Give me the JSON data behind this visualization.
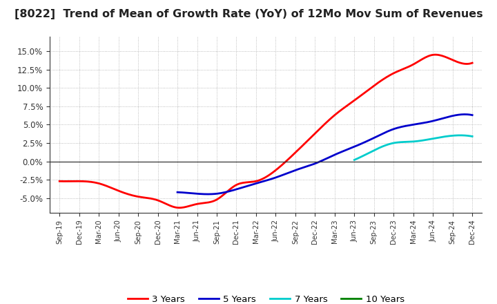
{
  "title": "[8022]  Trend of Mean of Growth Rate (YoY) of 12Mo Mov Sum of Revenues",
  "title_fontsize": 11.5,
  "ylim": [
    -0.07,
    0.17
  ],
  "yticks": [
    -0.05,
    -0.025,
    0.0,
    0.025,
    0.05,
    0.075,
    0.1,
    0.125,
    0.15
  ],
  "background_color": "#ffffff",
  "grid_color": "#aaaaaa",
  "series": {
    "3 Years": {
      "color": "#ff0000",
      "data": {
        "Sep-19": -0.027,
        "Dec-19": -0.027,
        "Mar-20": -0.03,
        "Jun-20": -0.04,
        "Sep-20": -0.048,
        "Dec-20": -0.053,
        "Mar-21": -0.063,
        "Jun-21": -0.058,
        "Sep-21": -0.052,
        "Dec-21": -0.032,
        "Mar-22": -0.027,
        "Jun-22": -0.012,
        "Sep-22": 0.012,
        "Dec-22": 0.038,
        "Mar-23": 0.063,
        "Jun-23": 0.083,
        "Sep-23": 0.103,
        "Dec-23": 0.12,
        "Mar-24": 0.132,
        "Jun-24": 0.145,
        "Sep-24": 0.138,
        "Dec-24": 0.134
      }
    },
    "5 Years": {
      "color": "#0000cc",
      "data": {
        "Mar-21": -0.042,
        "Jun-21": -0.044,
        "Sep-21": -0.044,
        "Dec-21": -0.038,
        "Mar-22": -0.03,
        "Jun-22": -0.022,
        "Sep-22": -0.012,
        "Dec-22": -0.003,
        "Mar-23": 0.009,
        "Jun-23": 0.02,
        "Sep-23": 0.032,
        "Dec-23": 0.044,
        "Mar-24": 0.05,
        "Jun-24": 0.055,
        "Sep-24": 0.062,
        "Dec-24": 0.063
      }
    },
    "7 Years": {
      "color": "#00cccc",
      "data": {
        "Jun-23": 0.002,
        "Sep-23": 0.015,
        "Dec-23": 0.025,
        "Mar-24": 0.027,
        "Jun-24": 0.031,
        "Sep-24": 0.035,
        "Dec-24": 0.034
      }
    },
    "10 Years": {
      "color": "#008000",
      "data": {}
    }
  },
  "quarters": [
    "Sep-19",
    "Dec-19",
    "Mar-20",
    "Jun-20",
    "Sep-20",
    "Dec-20",
    "Mar-21",
    "Jun-21",
    "Sep-21",
    "Dec-21",
    "Mar-22",
    "Jun-22",
    "Sep-22",
    "Dec-22",
    "Mar-23",
    "Jun-23",
    "Sep-23",
    "Dec-23",
    "Mar-24",
    "Jun-24",
    "Sep-24",
    "Dec-24"
  ],
  "legend_ncol": 4,
  "legend_fontsize": 9.5
}
